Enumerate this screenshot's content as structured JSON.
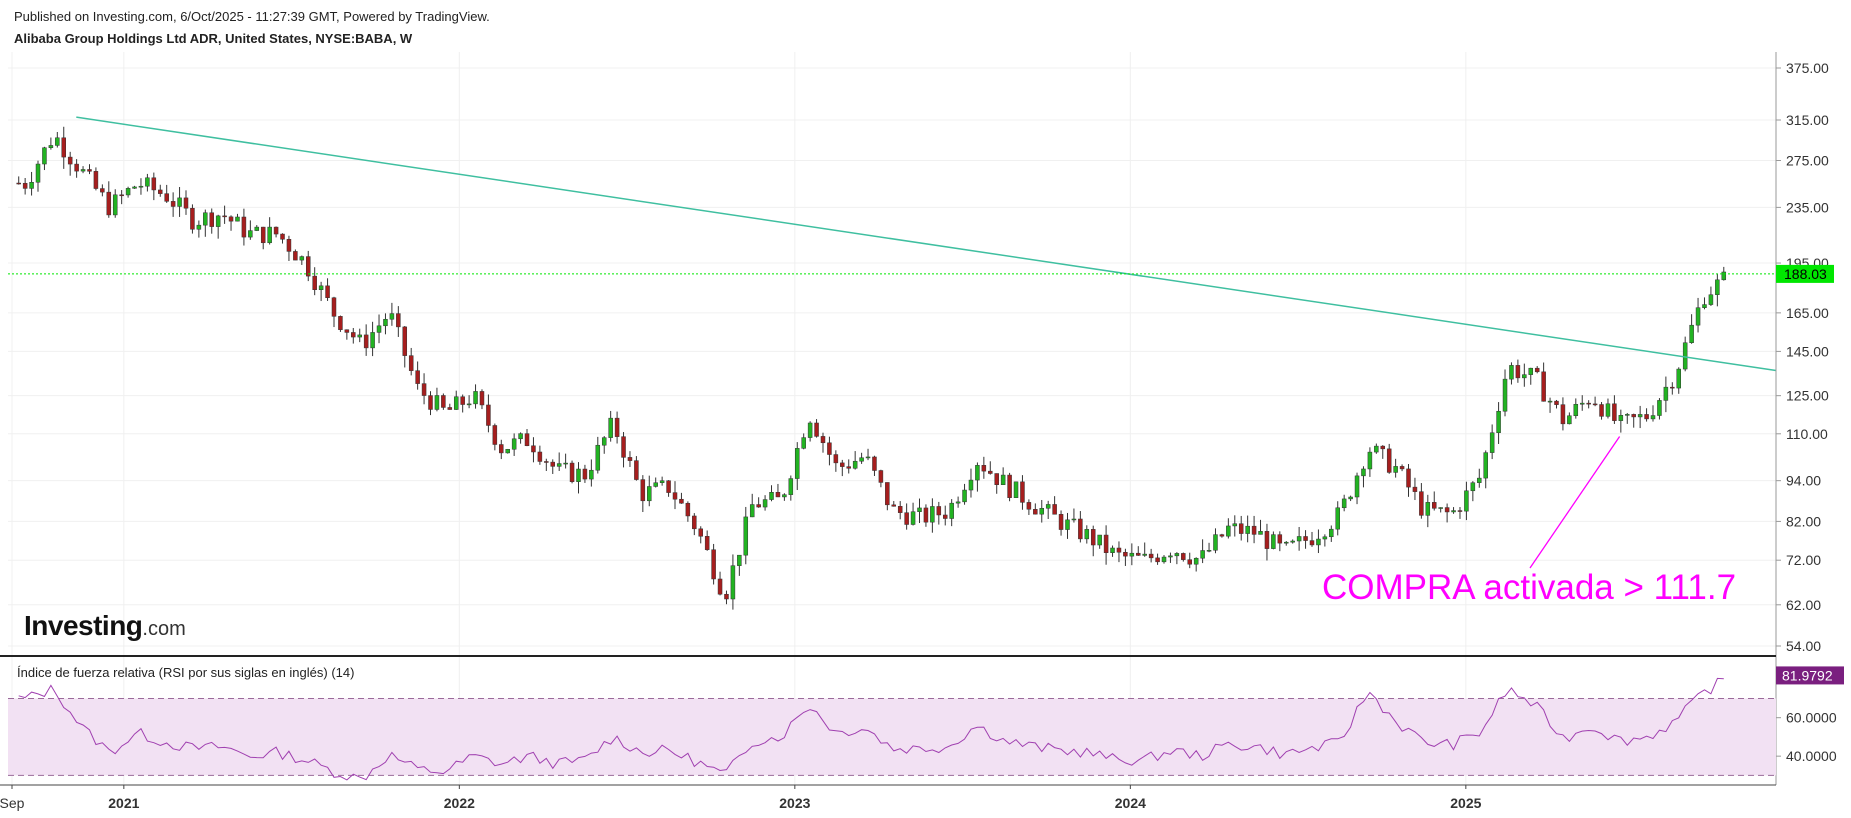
{
  "header": {
    "published": "Published on Investing.com, 6/Oct/2025 - 11:27:39 GMT, Powered by TradingView.",
    "symbol": "Alibaba Group Holdings Ltd ADR, United States, NYSE:BABA, W"
  },
  "logo": {
    "main": "Investing",
    "suffix": ".com"
  },
  "annotation": "COMPRA activada > 111.7",
  "rsi": {
    "label": "Índice de fuerza relativa (RSI por sus siglas en inglés) (14)",
    "last_value": "81.9792",
    "ticks": [
      "60.0000",
      "40.0000"
    ]
  },
  "colors": {
    "up": "#22b322",
    "down": "#a61e1e",
    "trend": "#3fbfa0",
    "price_line": "#00e600",
    "rsi": "#a040b0",
    "annotation": "#ff00ff"
  },
  "chart_data": [
    {
      "type": "candlestick",
      "title": "Alibaba Group Holdings Ltd ADR, United States, NYSE:BABA, W",
      "y_scale": "log",
      "y_ticks": [
        "375.00",
        "315.00",
        "275.00",
        "235.00",
        "195.00",
        "165.00",
        "145.00",
        "125.00",
        "110.00",
        "94.00",
        "82.00",
        "72.00",
        "62.00",
        "54.00"
      ],
      "x_ticks": [
        "Sep",
        "2021",
        "2022",
        "2023",
        "2024",
        "2025"
      ],
      "last_price": "188.03",
      "points": [
        {
          "date": "2020-09",
          "close": 255
        },
        {
          "date": "2020-10",
          "close": 300
        },
        {
          "date": "2020-11",
          "close": 265
        },
        {
          "date": "2020-12",
          "close": 235
        },
        {
          "date": "2021-01",
          "close": 255
        },
        {
          "date": "2021-02",
          "close": 245
        },
        {
          "date": "2021-03",
          "close": 225
        },
        {
          "date": "2021-04",
          "close": 230
        },
        {
          "date": "2021-05",
          "close": 215
        },
        {
          "date": "2021-06",
          "close": 215
        },
        {
          "date": "2021-07",
          "close": 195
        },
        {
          "date": "2021-08",
          "close": 165
        },
        {
          "date": "2021-09",
          "close": 148
        },
        {
          "date": "2021-10",
          "close": 165
        },
        {
          "date": "2021-11",
          "close": 128
        },
        {
          "date": "2021-12",
          "close": 118
        },
        {
          "date": "2022-01",
          "close": 125
        },
        {
          "date": "2022-02",
          "close": 105
        },
        {
          "date": "2022-03",
          "close": 108
        },
        {
          "date": "2022-04",
          "close": 97
        },
        {
          "date": "2022-05",
          "close": 96
        },
        {
          "date": "2022-06",
          "close": 114
        },
        {
          "date": "2022-07",
          "close": 90
        },
        {
          "date": "2022-08",
          "close": 92
        },
        {
          "date": "2022-09",
          "close": 80
        },
        {
          "date": "2022-10",
          "close": 64
        },
        {
          "date": "2022-11",
          "close": 87
        },
        {
          "date": "2022-12",
          "close": 88
        },
        {
          "date": "2023-01",
          "close": 118
        },
        {
          "date": "2023-02",
          "close": 98
        },
        {
          "date": "2023-03",
          "close": 102
        },
        {
          "date": "2023-04",
          "close": 85
        },
        {
          "date": "2023-05",
          "close": 83
        },
        {
          "date": "2023-06",
          "close": 85
        },
        {
          "date": "2023-07",
          "close": 101
        },
        {
          "date": "2023-08",
          "close": 93
        },
        {
          "date": "2023-09",
          "close": 87
        },
        {
          "date": "2023-10",
          "close": 82
        },
        {
          "date": "2023-11",
          "close": 78
        },
        {
          "date": "2023-12",
          "close": 73
        },
        {
          "date": "2024-01",
          "close": 72
        },
        {
          "date": "2024-02",
          "close": 75
        },
        {
          "date": "2024-03",
          "close": 72
        },
        {
          "date": "2024-04",
          "close": 80
        },
        {
          "date": "2024-05",
          "close": 79
        },
        {
          "date": "2024-06",
          "close": 74
        },
        {
          "date": "2024-07",
          "close": 78
        },
        {
          "date": "2024-08",
          "close": 84
        },
        {
          "date": "2024-09",
          "close": 105
        },
        {
          "date": "2024-10",
          "close": 98
        },
        {
          "date": "2024-11",
          "close": 85
        },
        {
          "date": "2024-12",
          "close": 84
        },
        {
          "date": "2025-01",
          "close": 95
        },
        {
          "date": "2025-02",
          "close": 138
        },
        {
          "date": "2025-03",
          "close": 132
        },
        {
          "date": "2025-04",
          "close": 115
        },
        {
          "date": "2025-05",
          "close": 125
        },
        {
          "date": "2025-06",
          "close": 113
        },
        {
          "date": "2025-07",
          "close": 117
        },
        {
          "date": "2025-08",
          "close": 135
        },
        {
          "date": "2025-09",
          "close": 175
        },
        {
          "date": "2025-10",
          "close": 188
        }
      ]
    },
    {
      "type": "line",
      "title": "Índice de fuerza relativa (RSI por sus siglas en inglés) (14)",
      "ylim": [
        25,
        90
      ],
      "y_ticks": [
        "60.0000",
        "40.0000"
      ],
      "band": [
        30,
        70
      ],
      "points": [
        {
          "date": "2020-09",
          "value": 70
        },
        {
          "date": "2020-10",
          "value": 75
        },
        {
          "date": "2020-11",
          "value": 55
        },
        {
          "date": "2020-12",
          "value": 42
        },
        {
          "date": "2021-01",
          "value": 52
        },
        {
          "date": "2021-02",
          "value": 47
        },
        {
          "date": "2021-03",
          "value": 44
        },
        {
          "date": "2021-04",
          "value": 45
        },
        {
          "date": "2021-05",
          "value": 40
        },
        {
          "date": "2021-06",
          "value": 42
        },
        {
          "date": "2021-07",
          "value": 38
        },
        {
          "date": "2021-08",
          "value": 32
        },
        {
          "date": "2021-09",
          "value": 28
        },
        {
          "date": "2021-10",
          "value": 41
        },
        {
          "date": "2021-11",
          "value": 33
        },
        {
          "date": "2021-12",
          "value": 32
        },
        {
          "date": "2022-01",
          "value": 40
        },
        {
          "date": "2022-02",
          "value": 36
        },
        {
          "date": "2022-03",
          "value": 40
        },
        {
          "date": "2022-04",
          "value": 36
        },
        {
          "date": "2022-05",
          "value": 38
        },
        {
          "date": "2022-06",
          "value": 50
        },
        {
          "date": "2022-07",
          "value": 42
        },
        {
          "date": "2022-08",
          "value": 43
        },
        {
          "date": "2022-09",
          "value": 37
        },
        {
          "date": "2022-10",
          "value": 30
        },
        {
          "date": "2022-11",
          "value": 48
        },
        {
          "date": "2022-12",
          "value": 50
        },
        {
          "date": "2023-01",
          "value": 67
        },
        {
          "date": "2023-02",
          "value": 52
        },
        {
          "date": "2023-03",
          "value": 55
        },
        {
          "date": "2023-04",
          "value": 44
        },
        {
          "date": "2023-05",
          "value": 44
        },
        {
          "date": "2023-06",
          "value": 45
        },
        {
          "date": "2023-07",
          "value": 56
        },
        {
          "date": "2023-08",
          "value": 48
        },
        {
          "date": "2023-09",
          "value": 45
        },
        {
          "date": "2023-10",
          "value": 43
        },
        {
          "date": "2023-11",
          "value": 42
        },
        {
          "date": "2023-12",
          "value": 38
        },
        {
          "date": "2024-01",
          "value": 38
        },
        {
          "date": "2024-02",
          "value": 43
        },
        {
          "date": "2024-03",
          "value": 40
        },
        {
          "date": "2024-04",
          "value": 46
        },
        {
          "date": "2024-05",
          "value": 45
        },
        {
          "date": "2024-06",
          "value": 41
        },
        {
          "date": "2024-07",
          "value": 44
        },
        {
          "date": "2024-08",
          "value": 47
        },
        {
          "date": "2024-09",
          "value": 74
        },
        {
          "date": "2024-10",
          "value": 58
        },
        {
          "date": "2024-11",
          "value": 47
        },
        {
          "date": "2024-12",
          "value": 46
        },
        {
          "date": "2025-01",
          "value": 52
        },
        {
          "date": "2025-02",
          "value": 75
        },
        {
          "date": "2025-03",
          "value": 66
        },
        {
          "date": "2025-04",
          "value": 49
        },
        {
          "date": "2025-05",
          "value": 56
        },
        {
          "date": "2025-06",
          "value": 48
        },
        {
          "date": "2025-07",
          "value": 50
        },
        {
          "date": "2025-08",
          "value": 58
        },
        {
          "date": "2025-09",
          "value": 73
        },
        {
          "date": "2025-10",
          "value": 82
        }
      ]
    }
  ]
}
